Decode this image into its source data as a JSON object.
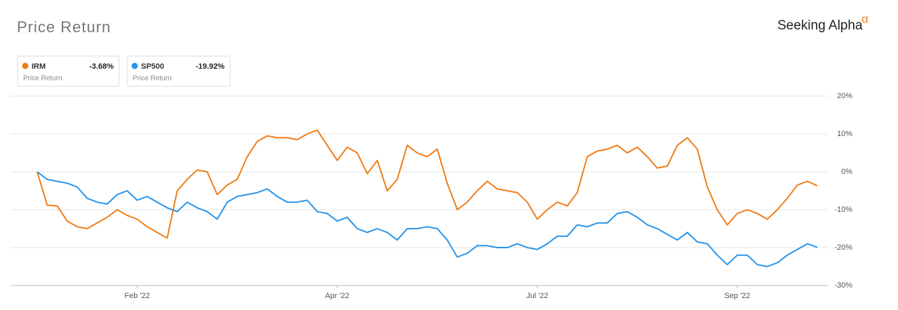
{
  "chart_data": {
    "type": "line",
    "title": "Price Return",
    "brand": "Seeking Alpha",
    "brand_mark": "α",
    "categories": [
      null,
      null,
      null,
      null,
      null,
      null,
      null,
      null,
      null,
      null,
      "Feb '22",
      null,
      null,
      null,
      null,
      null,
      null,
      null,
      null,
      null,
      null,
      null,
      null,
      null,
      null,
      null,
      null,
      null,
      null,
      null,
      "Apr '22",
      null,
      null,
      null,
      null,
      null,
      null,
      null,
      null,
      null,
      null,
      null,
      null,
      null,
      null,
      null,
      null,
      null,
      null,
      null,
      "Jul '22",
      null,
      null,
      null,
      null,
      null,
      null,
      null,
      null,
      null,
      null,
      null,
      null,
      null,
      null,
      null,
      null,
      null,
      null,
      null,
      "Sep '22",
      null,
      null,
      null,
      null,
      null,
      null,
      null,
      null
    ],
    "series": [
      {
        "name": "IRM",
        "color": "#f07e1b",
        "change_label": "-3.68%",
        "subtitle": "Price Return",
        "values": [
          0,
          -8.8,
          -9,
          -13,
          -14.5,
          -15,
          -13.5,
          -12,
          -10,
          -11.5,
          -12.5,
          -14.5,
          -16,
          -17.5,
          -5,
          -2,
          0.5,
          0,
          -6,
          -3.5,
          -2,
          4,
          8,
          9.5,
          9,
          9,
          8.5,
          10,
          11,
          7,
          3,
          6.5,
          5,
          -0.5,
          3,
          -5,
          -2,
          7,
          5,
          4,
          6,
          -3,
          -10,
          -8,
          -5,
          -2.5,
          -4.5,
          -5,
          -5.5,
          -8,
          -12.5,
          -10,
          -8,
          -9,
          -5.5,
          4,
          5.5,
          6,
          7,
          5,
          6.5,
          4,
          1,
          1.5,
          7,
          9,
          6,
          -4,
          -10,
          -14,
          -11,
          -10,
          -11,
          -12.5,
          -10,
          -7,
          -3.5,
          -2.5,
          -3.68
        ]
      },
      {
        "name": "SP500",
        "color": "#2b95e8",
        "change_label": "-19.92%",
        "subtitle": "Price Return",
        "values": [
          0,
          -2,
          -2.5,
          -3,
          -4,
          -7,
          -8,
          -8.5,
          -6,
          -5,
          -7.5,
          -6.5,
          -8,
          -9.5,
          -10.5,
          -8,
          -9.5,
          -10.5,
          -12.5,
          -8,
          -6.5,
          -6,
          -5.5,
          -4.5,
          -6.5,
          -8,
          -8,
          -7.5,
          -10.5,
          -11,
          -13,
          -12,
          -15,
          -16,
          -15,
          -16,
          -18,
          -15,
          -15,
          -14.5,
          -15,
          -18,
          -22.5,
          -21.5,
          -19.5,
          -19.5,
          -20,
          -20,
          -19,
          -20,
          -20.5,
          -19,
          -17,
          -17,
          -14,
          -14.5,
          -13.5,
          -13.5,
          -11,
          -10.5,
          -12,
          -14,
          -15,
          -16.5,
          -18,
          -16,
          -18.5,
          -19,
          -22,
          -24.5,
          -22,
          -22,
          -24.5,
          -25,
          -24,
          -22,
          -20.5,
          -19,
          -19.92
        ]
      }
    ],
    "ylim": [
      -30,
      20
    ],
    "yticks": [
      {
        "value": -30,
        "label": "-30%"
      },
      {
        "value": -20,
        "label": "-20%"
      },
      {
        "value": -10,
        "label": "-10%"
      },
      {
        "value": 0,
        "label": "0%"
      },
      {
        "value": 10,
        "label": "10%"
      },
      {
        "value": 20,
        "label": "20%"
      }
    ],
    "grid": true
  }
}
